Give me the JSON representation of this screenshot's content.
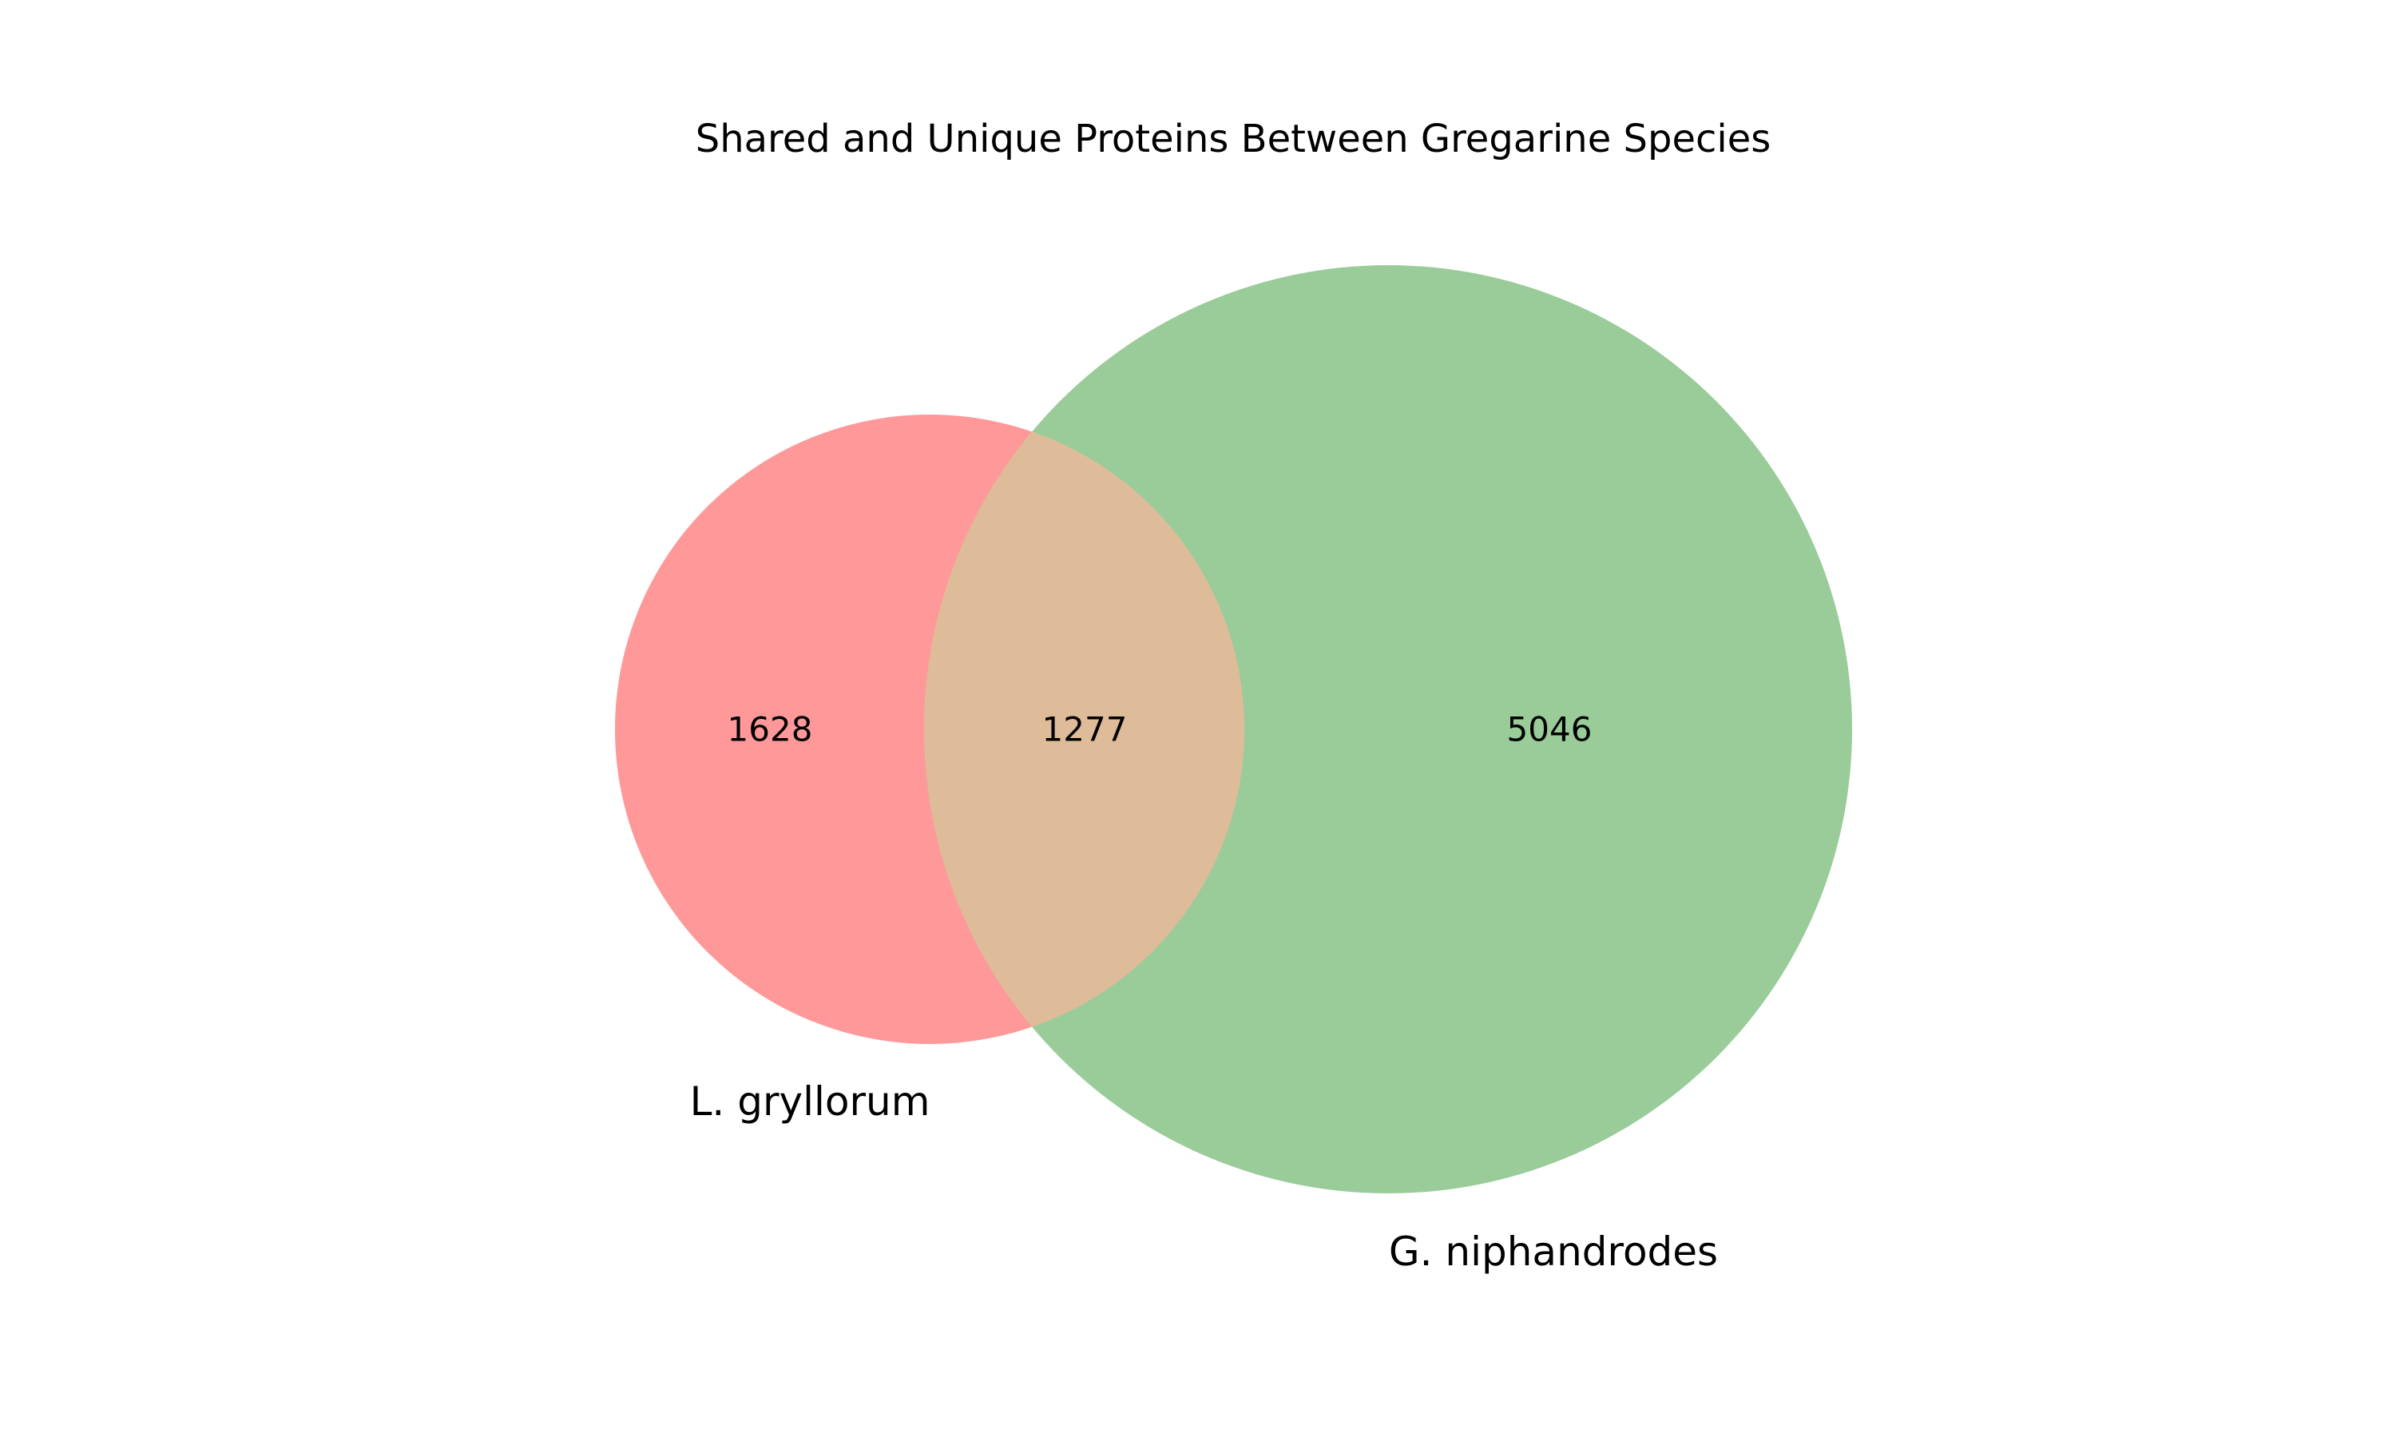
{
  "chart_data": {
    "type": "venn",
    "title": "Shared and Unique Proteins Between Gregarine Species",
    "sets": [
      {
        "name": "L. gryllorum",
        "color": "#ff9999"
      },
      {
        "name": "G. niphandrodes",
        "color": "#99cc99"
      }
    ],
    "regions": [
      {
        "sets": [
          "L. gryllorum"
        ],
        "value": 1628
      },
      {
        "sets": [
          "L. gryllorum",
          "G. niphandrodes"
        ],
        "value": 1277
      },
      {
        "sets": [
          "G. niphandrodes"
        ],
        "value": 5046
      }
    ],
    "overlap_color": "#dfbc99"
  }
}
